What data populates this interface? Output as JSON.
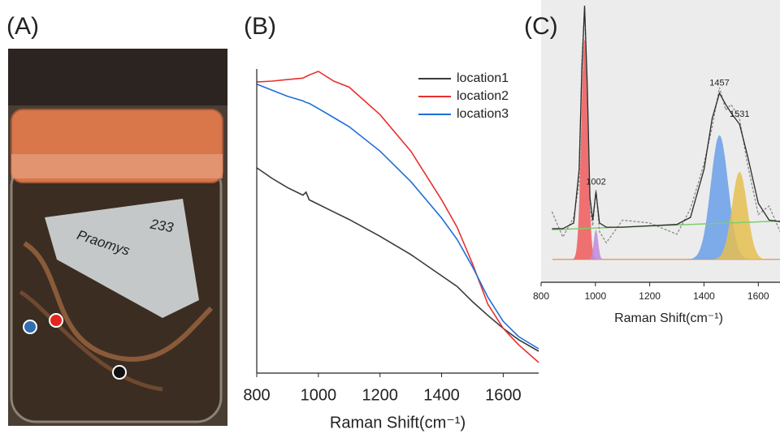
{
  "photo": {
    "label": "(A)",
    "tag_number": "233",
    "tag_name": "Praomys"
  },
  "chart_data": [
    {
      "type": "line",
      "label": "(B)",
      "x_label": "Raman Shift(cm⁻¹)",
      "x": [
        800,
        850,
        900,
        950,
        960,
        970,
        1000,
        1050,
        1100,
        1200,
        1300,
        1400,
        1450,
        1500,
        1550,
        1600,
        1650,
        1715
      ],
      "series": [
        {
          "name": "location1",
          "color": "#3a3a3a",
          "values": [
            67.5,
            64,
            61,
            58.5,
            59.5,
            57,
            55.5,
            53,
            50.5,
            45,
            39,
            32,
            28.5,
            23.5,
            19,
            14.7,
            11,
            7.2
          ]
        },
        {
          "name": "location2",
          "color": "#e8302f",
          "values": [
            95.7,
            96,
            96.5,
            97,
            97.5,
            98,
            99.2,
            96,
            94,
            85,
            73,
            57,
            48,
            36,
            22.7,
            14.7,
            9.3,
            3.5
          ]
        },
        {
          "name": "location3",
          "color": "#1f6fd6",
          "values": [
            95,
            93,
            91,
            89.5,
            89,
            88.7,
            87,
            84,
            81,
            73,
            63,
            51,
            44,
            35,
            25,
            17,
            12,
            8
          ]
        }
      ],
      "xlim": [
        800,
        1715
      ],
      "xticks": [
        800,
        1000,
        1200,
        1400,
        1600
      ],
      "ylim": [
        0,
        100
      ],
      "legend": "top-right"
    },
    {
      "type": "line",
      "label": "(C)",
      "x_label": "Raman Shift(cm⁻¹)",
      "background": "#ececec",
      "x": [
        840,
        880,
        920,
        940,
        950,
        960,
        970,
        980,
        990,
        1002,
        1015,
        1040,
        1100,
        1200,
        1300,
        1350,
        1400,
        1430,
        1457,
        1480,
        1500,
        1531,
        1560,
        1600,
        1640,
        1680
      ],
      "series": [
        {
          "color": "#8a8a8a",
          "dash": true,
          "values": [
            25,
            16,
            23,
            35,
            78,
            97,
            66,
            26,
            20,
            33,
            18,
            14,
            22,
            21,
            17,
            26,
            42,
            55,
            69,
            61,
            63,
            58,
            42,
            24,
            27,
            18
          ]
        },
        {
          "color": "#2a2a2a",
          "dash": false,
          "values": [
            19,
            19,
            21,
            40,
            75,
            98,
            70,
            30,
            22,
            32,
            21,
            19.5,
            19.5,
            20,
            20.5,
            23,
            40,
            58,
            67,
            63,
            60,
            56,
            45,
            28,
            22,
            21.5
          ]
        }
      ],
      "baseline": {
        "color": "#7ccf6a",
        "x": [
          840,
          1680
        ],
        "values": [
          18.6,
          21.7
        ]
      },
      "floor": {
        "color": "#e0a070",
        "value": 8.1
      },
      "peaks": [
        {
          "center": 960,
          "height": 78,
          "width": 12,
          "color": "#f05a5a"
        },
        {
          "center": 1002,
          "height": 10.5,
          "width": 8,
          "color": "#c08adf"
        },
        {
          "center": 1457,
          "height": 44,
          "width": 32,
          "color": "#6a9fe8"
        },
        {
          "center": 1531,
          "height": 31,
          "width": 28,
          "color": "#e6c050"
        }
      ],
      "xlim": [
        800,
        1680
      ],
      "xticks": [
        800,
        1000,
        1200,
        1400,
        1600
      ],
      "ylim": [
        0,
        100
      ]
    }
  ]
}
